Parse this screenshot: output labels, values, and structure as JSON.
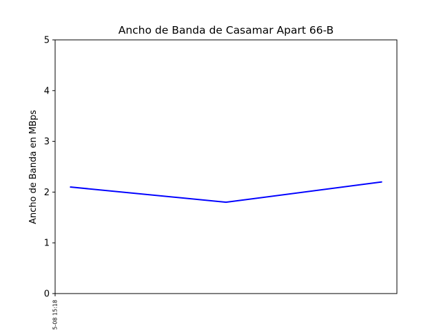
{
  "chart_data": {
    "type": "line",
    "title": "Ancho de Banda de Casamar Apart 66-B",
    "xlabel": "",
    "ylabel": "Ancho de Banda en MBps",
    "x_tick_labels": [
      "5-08 15:18"
    ],
    "ylim": [
      0,
      5
    ],
    "y_ticks": [
      0,
      1,
      2,
      3,
      4,
      5
    ],
    "grid": false,
    "series": [
      {
        "values": [
          2.1,
          1.8,
          2.2
        ],
        "color": "#0000ff"
      }
    ]
  }
}
